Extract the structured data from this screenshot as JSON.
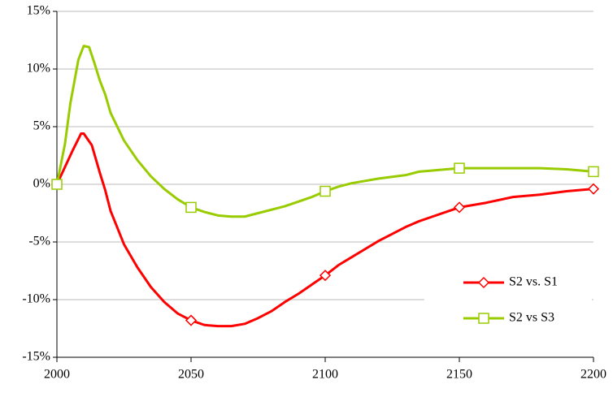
{
  "chart_data": {
    "type": "line",
    "xlim": [
      2000,
      2200
    ],
    "xticks": [
      2000,
      2050,
      2100,
      2150,
      2200
    ],
    "ylim": [
      -15,
      15
    ],
    "yticks": [
      {
        "value": -15,
        "label": "-15%"
      },
      {
        "value": -10,
        "label": "-10%"
      },
      {
        "value": -5,
        "label": "-5%"
      },
      {
        "value": 0,
        "label": "0%"
      },
      {
        "value": 5,
        "label": "5%"
      },
      {
        "value": 10,
        "label": "10%"
      },
      {
        "value": 15,
        "label": "15%"
      }
    ],
    "grid": true,
    "legend": "right",
    "series": [
      {
        "name": "S2 vs. S1",
        "color": "#ff0000",
        "marker": "diamond",
        "x": [
          2000,
          2003,
          2006,
          2009,
          2010,
          2013,
          2016,
          2018,
          2020,
          2025,
          2030,
          2035,
          2040,
          2045,
          2050,
          2055,
          2060,
          2065,
          2070,
          2075,
          2080,
          2085,
          2090,
          2095,
          2100,
          2105,
          2110,
          2115,
          2120,
          2125,
          2130,
          2135,
          2140,
          2145,
          2150,
          2160,
          2170,
          2180,
          2190,
          2200
        ],
        "values": [
          0,
          1.5,
          3.0,
          4.4,
          4.4,
          3.4,
          1.0,
          -0.5,
          -2.3,
          -5.2,
          -7.2,
          -8.9,
          -10.2,
          -11.2,
          -11.8,
          -12.2,
          -12.3,
          -12.3,
          -12.1,
          -11.6,
          -11.0,
          -10.2,
          -9.5,
          -8.7,
          -7.9,
          -7.0,
          -6.3,
          -5.6,
          -4.9,
          -4.3,
          -3.7,
          -3.2,
          -2.8,
          -2.4,
          -2.0,
          -1.6,
          -1.1,
          -0.9,
          -0.6,
          -0.4
        ]
      },
      {
        "name": "S2 vs S3",
        "color": "#99cc00",
        "marker": "square",
        "x": [
          2000,
          2003,
          2005,
          2008,
          2010,
          2012,
          2014,
          2016,
          2018,
          2020,
          2025,
          2030,
          2035,
          2040,
          2045,
          2050,
          2055,
          2060,
          2065,
          2070,
          2075,
          2080,
          2085,
          2090,
          2095,
          2100,
          2105,
          2110,
          2120,
          2130,
          2135,
          2140,
          2150,
          2160,
          2170,
          2180,
          2190,
          2200
        ],
        "values": [
          0,
          3.5,
          7.0,
          10.8,
          12.0,
          11.9,
          10.5,
          9.0,
          7.8,
          6.2,
          3.8,
          2.1,
          0.7,
          -0.4,
          -1.3,
          -2.0,
          -2.4,
          -2.7,
          -2.8,
          -2.8,
          -2.5,
          -2.2,
          -1.9,
          -1.5,
          -1.1,
          -0.6,
          -0.2,
          0.1,
          0.5,
          0.8,
          1.1,
          1.2,
          1.4,
          1.4,
          1.4,
          1.4,
          1.3,
          1.1
        ]
      }
    ]
  }
}
